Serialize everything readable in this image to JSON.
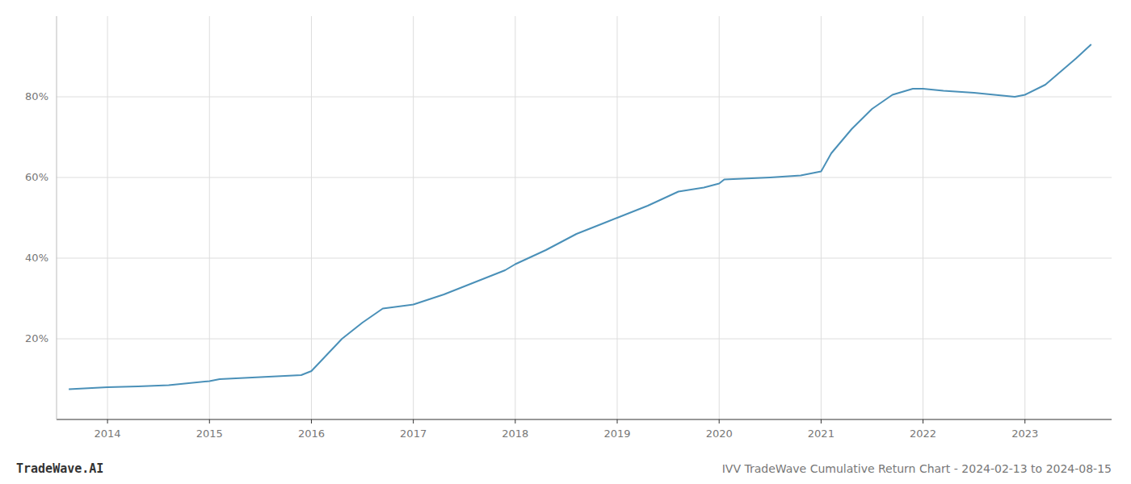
{
  "chart_data": {
    "type": "line",
    "title": "IVV TradeWave Cumulative Return Chart - 2024-02-13 to 2024-08-15",
    "annotations": [
      "TradeWave.AI"
    ],
    "x": [
      2013.62,
      2014.0,
      2014.3,
      2014.6,
      2015.0,
      2015.1,
      2015.5,
      2015.9,
      2016.0,
      2016.15,
      2016.3,
      2016.5,
      2016.7,
      2017.0,
      2017.3,
      2017.6,
      2017.9,
      2018.0,
      2018.3,
      2018.6,
      2018.9,
      2019.0,
      2019.3,
      2019.6,
      2019.85,
      2020.0,
      2020.05,
      2020.5,
      2020.8,
      2021.0,
      2021.1,
      2021.3,
      2021.5,
      2021.7,
      2021.9,
      2022.0,
      2022.2,
      2022.5,
      2022.7,
      2022.9,
      2023.0,
      2023.2,
      2023.5,
      2023.65
    ],
    "values": [
      7.5,
      8.0,
      8.2,
      8.5,
      9.5,
      10.0,
      10.5,
      11.0,
      12.0,
      16.0,
      20.0,
      24.0,
      27.5,
      28.5,
      31.0,
      34.0,
      37.0,
      38.5,
      42.0,
      46.0,
      49.0,
      50.0,
      53.0,
      56.5,
      57.5,
      58.5,
      59.5,
      60.0,
      60.5,
      61.5,
      66.0,
      72.0,
      77.0,
      80.5,
      82.0,
      82.0,
      81.5,
      81.0,
      80.5,
      80.0,
      80.5,
      83.0,
      89.5,
      93.0
    ],
    "color": "#4a90b8",
    "xlim": [
      2013.5,
      2023.85
    ],
    "xticks": [
      2014,
      2015,
      2016,
      2017,
      2018,
      2019,
      2020,
      2021,
      2022,
      2023
    ],
    "ylim": [
      0,
      100
    ],
    "yticks": [
      {
        "value": 20,
        "label": "20%"
      },
      {
        "value": 40,
        "label": "40%"
      },
      {
        "value": 60,
        "label": "60%"
      },
      {
        "value": 80,
        "label": "80%"
      }
    ],
    "grid": true
  }
}
